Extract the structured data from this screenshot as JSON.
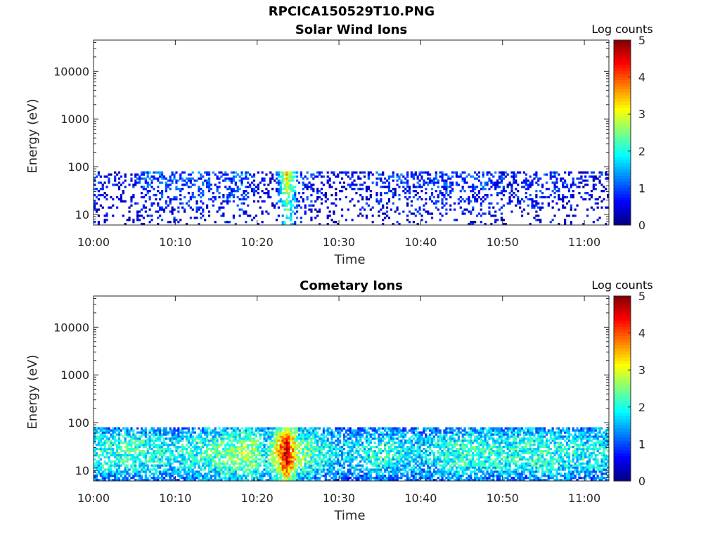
{
  "figure": {
    "title": "RPCICA150529T10.PNG"
  },
  "chart_data": [
    {
      "type": "heatmap",
      "title": "Solar Wind Ions",
      "xlabel": "Time",
      "ylabel": "Energy (eV)",
      "x_ticks": [
        "10:00",
        "10:10",
        "10:20",
        "10:30",
        "10:40",
        "10:50",
        "11:00"
      ],
      "x_range_minutes": [
        0,
        63
      ],
      "y_scale": "log",
      "y_range": [
        6,
        45000
      ],
      "y_ticks": [
        10,
        100,
        1000,
        10000
      ],
      "y_tick_labels": [
        "10",
        "100",
        "1000",
        "10000"
      ],
      "colorbar": {
        "label": "Log counts",
        "range": [
          0,
          5
        ],
        "ticks": [
          "0",
          "1",
          "2",
          "3",
          "4",
          "5"
        ],
        "colormap": "jet"
      },
      "data_energy_range": [
        6,
        80
      ],
      "intensity_profile_minutes": [
        {
          "t": 0,
          "v": 0.6
        },
        {
          "t": 4,
          "v": 0.3
        },
        {
          "t": 6,
          "v": 0.9
        },
        {
          "t": 12,
          "v": 0.8
        },
        {
          "t": 16,
          "v": 0.7
        },
        {
          "t": 18,
          "v": 0.9
        },
        {
          "t": 20,
          "v": 0.4
        },
        {
          "t": 22,
          "v": 0.3
        },
        {
          "t": 23.5,
          "v": 2.6
        },
        {
          "t": 25,
          "v": 0.8
        },
        {
          "t": 30,
          "v": 0.3
        },
        {
          "t": 34,
          "v": 0.6
        },
        {
          "t": 40,
          "v": 0.7
        },
        {
          "t": 45,
          "v": 0.8
        },
        {
          "t": 50,
          "v": 0.6
        },
        {
          "t": 55,
          "v": 0.7
        },
        {
          "t": 60,
          "v": 0.5
        },
        {
          "t": 63,
          "v": 0.4
        }
      ]
    },
    {
      "type": "heatmap",
      "title": "Cometary Ions",
      "xlabel": "Time",
      "ylabel": "Energy (eV)",
      "x_ticks": [
        "10:00",
        "10:10",
        "10:20",
        "10:30",
        "10:40",
        "10:50",
        "11:00"
      ],
      "x_range_minutes": [
        0,
        63
      ],
      "y_scale": "log",
      "y_range": [
        6,
        45000
      ],
      "y_ticks": [
        10,
        100,
        1000,
        10000
      ],
      "y_tick_labels": [
        "10",
        "100",
        "1000",
        "10000"
      ],
      "colorbar": {
        "label": "Log counts",
        "range": [
          0,
          5
        ],
        "ticks": [
          "0",
          "1",
          "2",
          "3",
          "4",
          "5"
        ],
        "colormap": "jet"
      },
      "data_energy_range": [
        6,
        80
      ],
      "intensity_profile_minutes": [
        {
          "t": 0,
          "v": 1.6
        },
        {
          "t": 5,
          "v": 1.7
        },
        {
          "t": 10,
          "v": 1.5
        },
        {
          "t": 15,
          "v": 1.8
        },
        {
          "t": 19,
          "v": 2.2
        },
        {
          "t": 21,
          "v": 1.4
        },
        {
          "t": 23.5,
          "v": 3.7
        },
        {
          "t": 25,
          "v": 2.0
        },
        {
          "t": 30,
          "v": 1.3
        },
        {
          "t": 35,
          "v": 1.6
        },
        {
          "t": 40,
          "v": 1.4
        },
        {
          "t": 45,
          "v": 1.7
        },
        {
          "t": 50,
          "v": 1.6
        },
        {
          "t": 55,
          "v": 1.7
        },
        {
          "t": 60,
          "v": 1.5
        },
        {
          "t": 63,
          "v": 1.5
        }
      ]
    }
  ]
}
